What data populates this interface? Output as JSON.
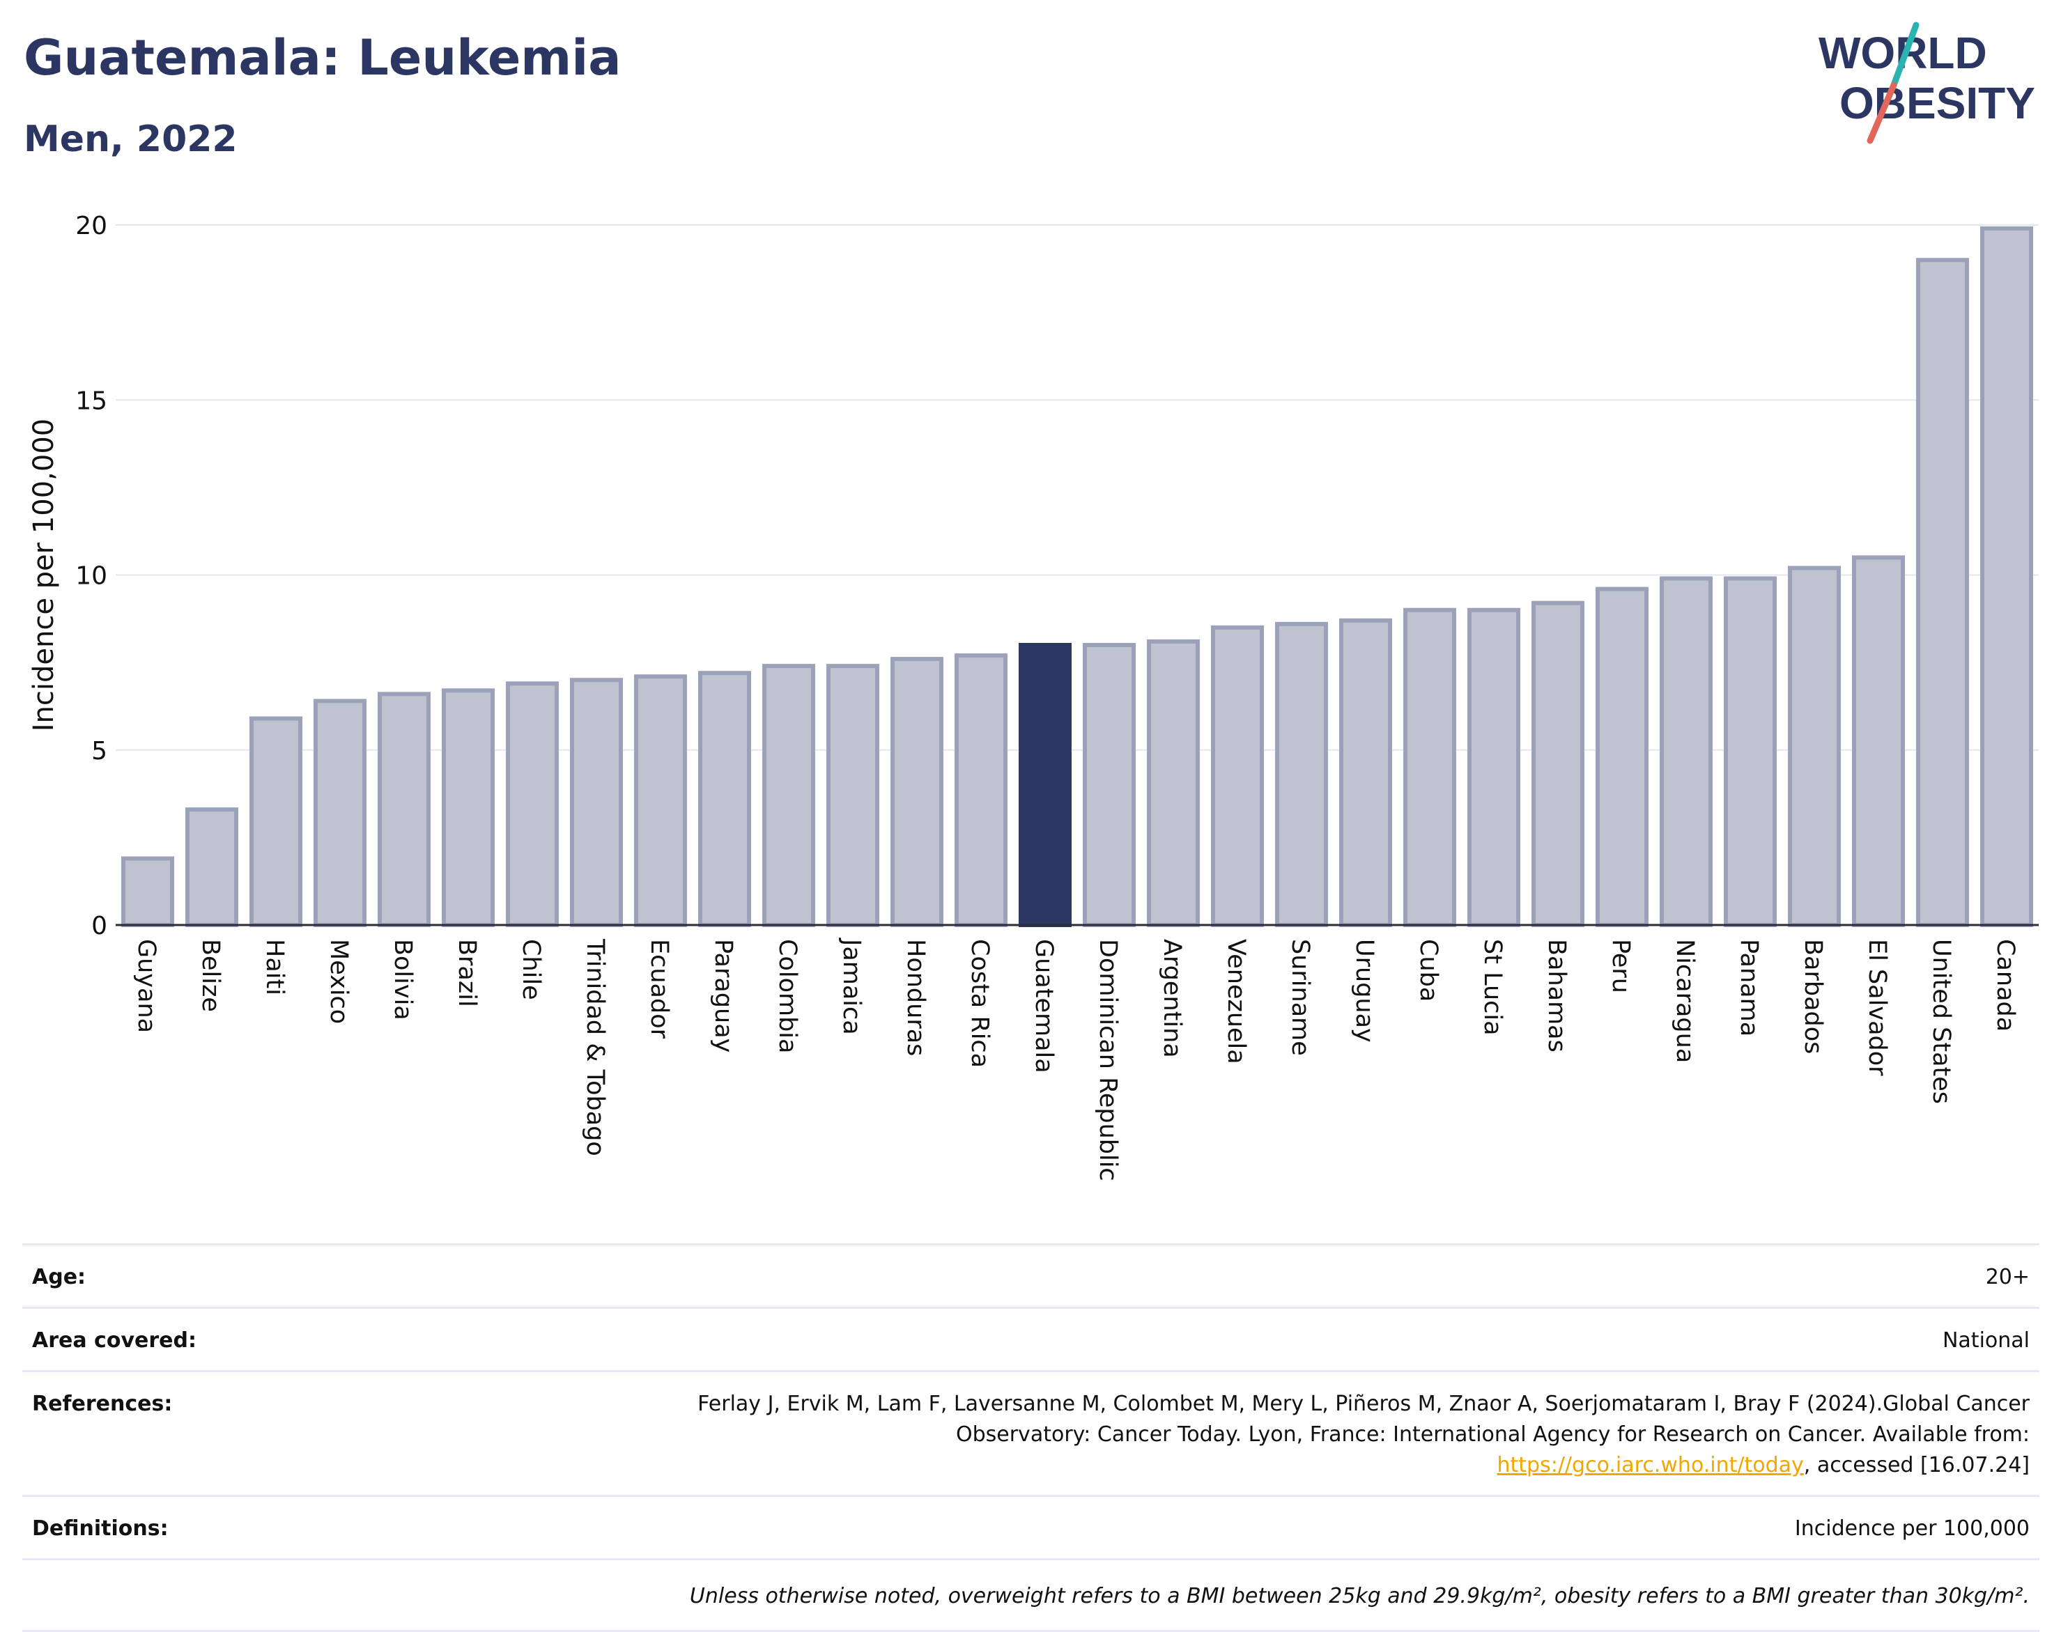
{
  "title": "Guatemala: Leukemia",
  "subtitle": "Men, 2022",
  "logo": {
    "line1": "WORLD",
    "line2": "OBESITY"
  },
  "colors": {
    "highlight": "#2b3663",
    "bar_fill": "#bfc3d0",
    "bar_stroke": "#9ba1b8",
    "text_dark": "#2b3663",
    "accent_teal": "#2bb3b1",
    "accent_coral": "#e0675a",
    "link": "#f0a800"
  },
  "chart_data": {
    "type": "bar",
    "ylabel": "Incidence per 100,000",
    "ylim": [
      0,
      20
    ],
    "yticks": [
      0,
      5,
      10,
      15,
      20
    ],
    "grid": true,
    "highlight": "Guatemala",
    "categories": [
      "Guyana",
      "Belize",
      "Haiti",
      "Mexico",
      "Bolivia",
      "Brazil",
      "Chile",
      "Trinidad & Tobago",
      "Ecuador",
      "Paraguay",
      "Colombia",
      "Jamaica",
      "Honduras",
      "Costa Rica",
      "Guatemala",
      "Dominican Republic",
      "Argentina",
      "Venezuela",
      "Suriname",
      "Uruguay",
      "Cuba",
      "St Lucia",
      "Bahamas",
      "Peru",
      "Nicaragua",
      "Panama",
      "Barbados",
      "El Salvador",
      "United States",
      "Canada"
    ],
    "values": [
      1.9,
      3.3,
      5.9,
      6.4,
      6.6,
      6.7,
      6.9,
      7.0,
      7.1,
      7.2,
      7.4,
      7.4,
      7.6,
      7.7,
      8.0,
      8.0,
      8.1,
      8.5,
      8.6,
      8.7,
      9.0,
      9.0,
      9.2,
      9.6,
      9.9,
      9.9,
      10.2,
      10.5,
      19.0,
      19.9
    ]
  },
  "meta": {
    "age_label": "Age:",
    "age_value": "20+",
    "area_label": "Area covered:",
    "area_value": "National",
    "references_label": "References:",
    "references_text_1": "Ferlay J, Ervik M, Lam F, Laversanne M, Colombet M, Mery L, Piñeros M, Znaor A, Soerjomataram I, Bray F (2024).Global Cancer Observatory: Cancer Today. Lyon, France: International Agency for Research on Cancer. Available from: ",
    "references_link": "https://gco.iarc.who.int/today",
    "references_text_2": ", accessed [16.07.24]",
    "definitions_label": "Definitions:",
    "definitions_value": "Incidence per 100,000",
    "note": "Unless otherwise noted, overweight refers to a BMI between 25kg and 29.9kg/m², obesity refers to a BMI greater than 30kg/m²."
  }
}
